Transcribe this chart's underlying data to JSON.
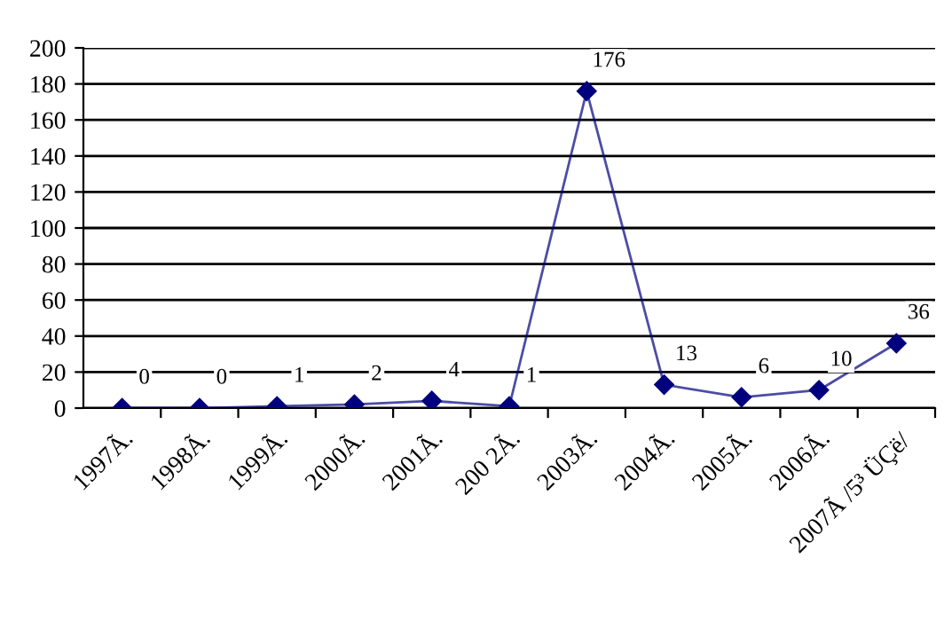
{
  "chart_data": {
    "type": "line",
    "categories": [
      "1997Ã.",
      "1998Ã.",
      "1999Ã.",
      "2000Ã.",
      "2001Ã.",
      "200 2Ã.",
      "2003Ã.",
      "2004Ã.",
      "2005Ã.",
      "2006Ã.",
      "2007Ã /5³ ÜÇë/"
    ],
    "series": [
      {
        "color": "#00007f",
        "values": [
          0,
          0,
          1,
          2,
          4,
          1,
          176,
          13,
          6,
          10,
          36
        ]
      }
    ],
    "ylim": [
      0,
      200
    ],
    "yticks": [
      0,
      20,
      40,
      60,
      80,
      100,
      120,
      140,
      160,
      180,
      200
    ],
    "grid": "y",
    "marker": "diamond",
    "line_style": "solid",
    "data_labels": true
  }
}
